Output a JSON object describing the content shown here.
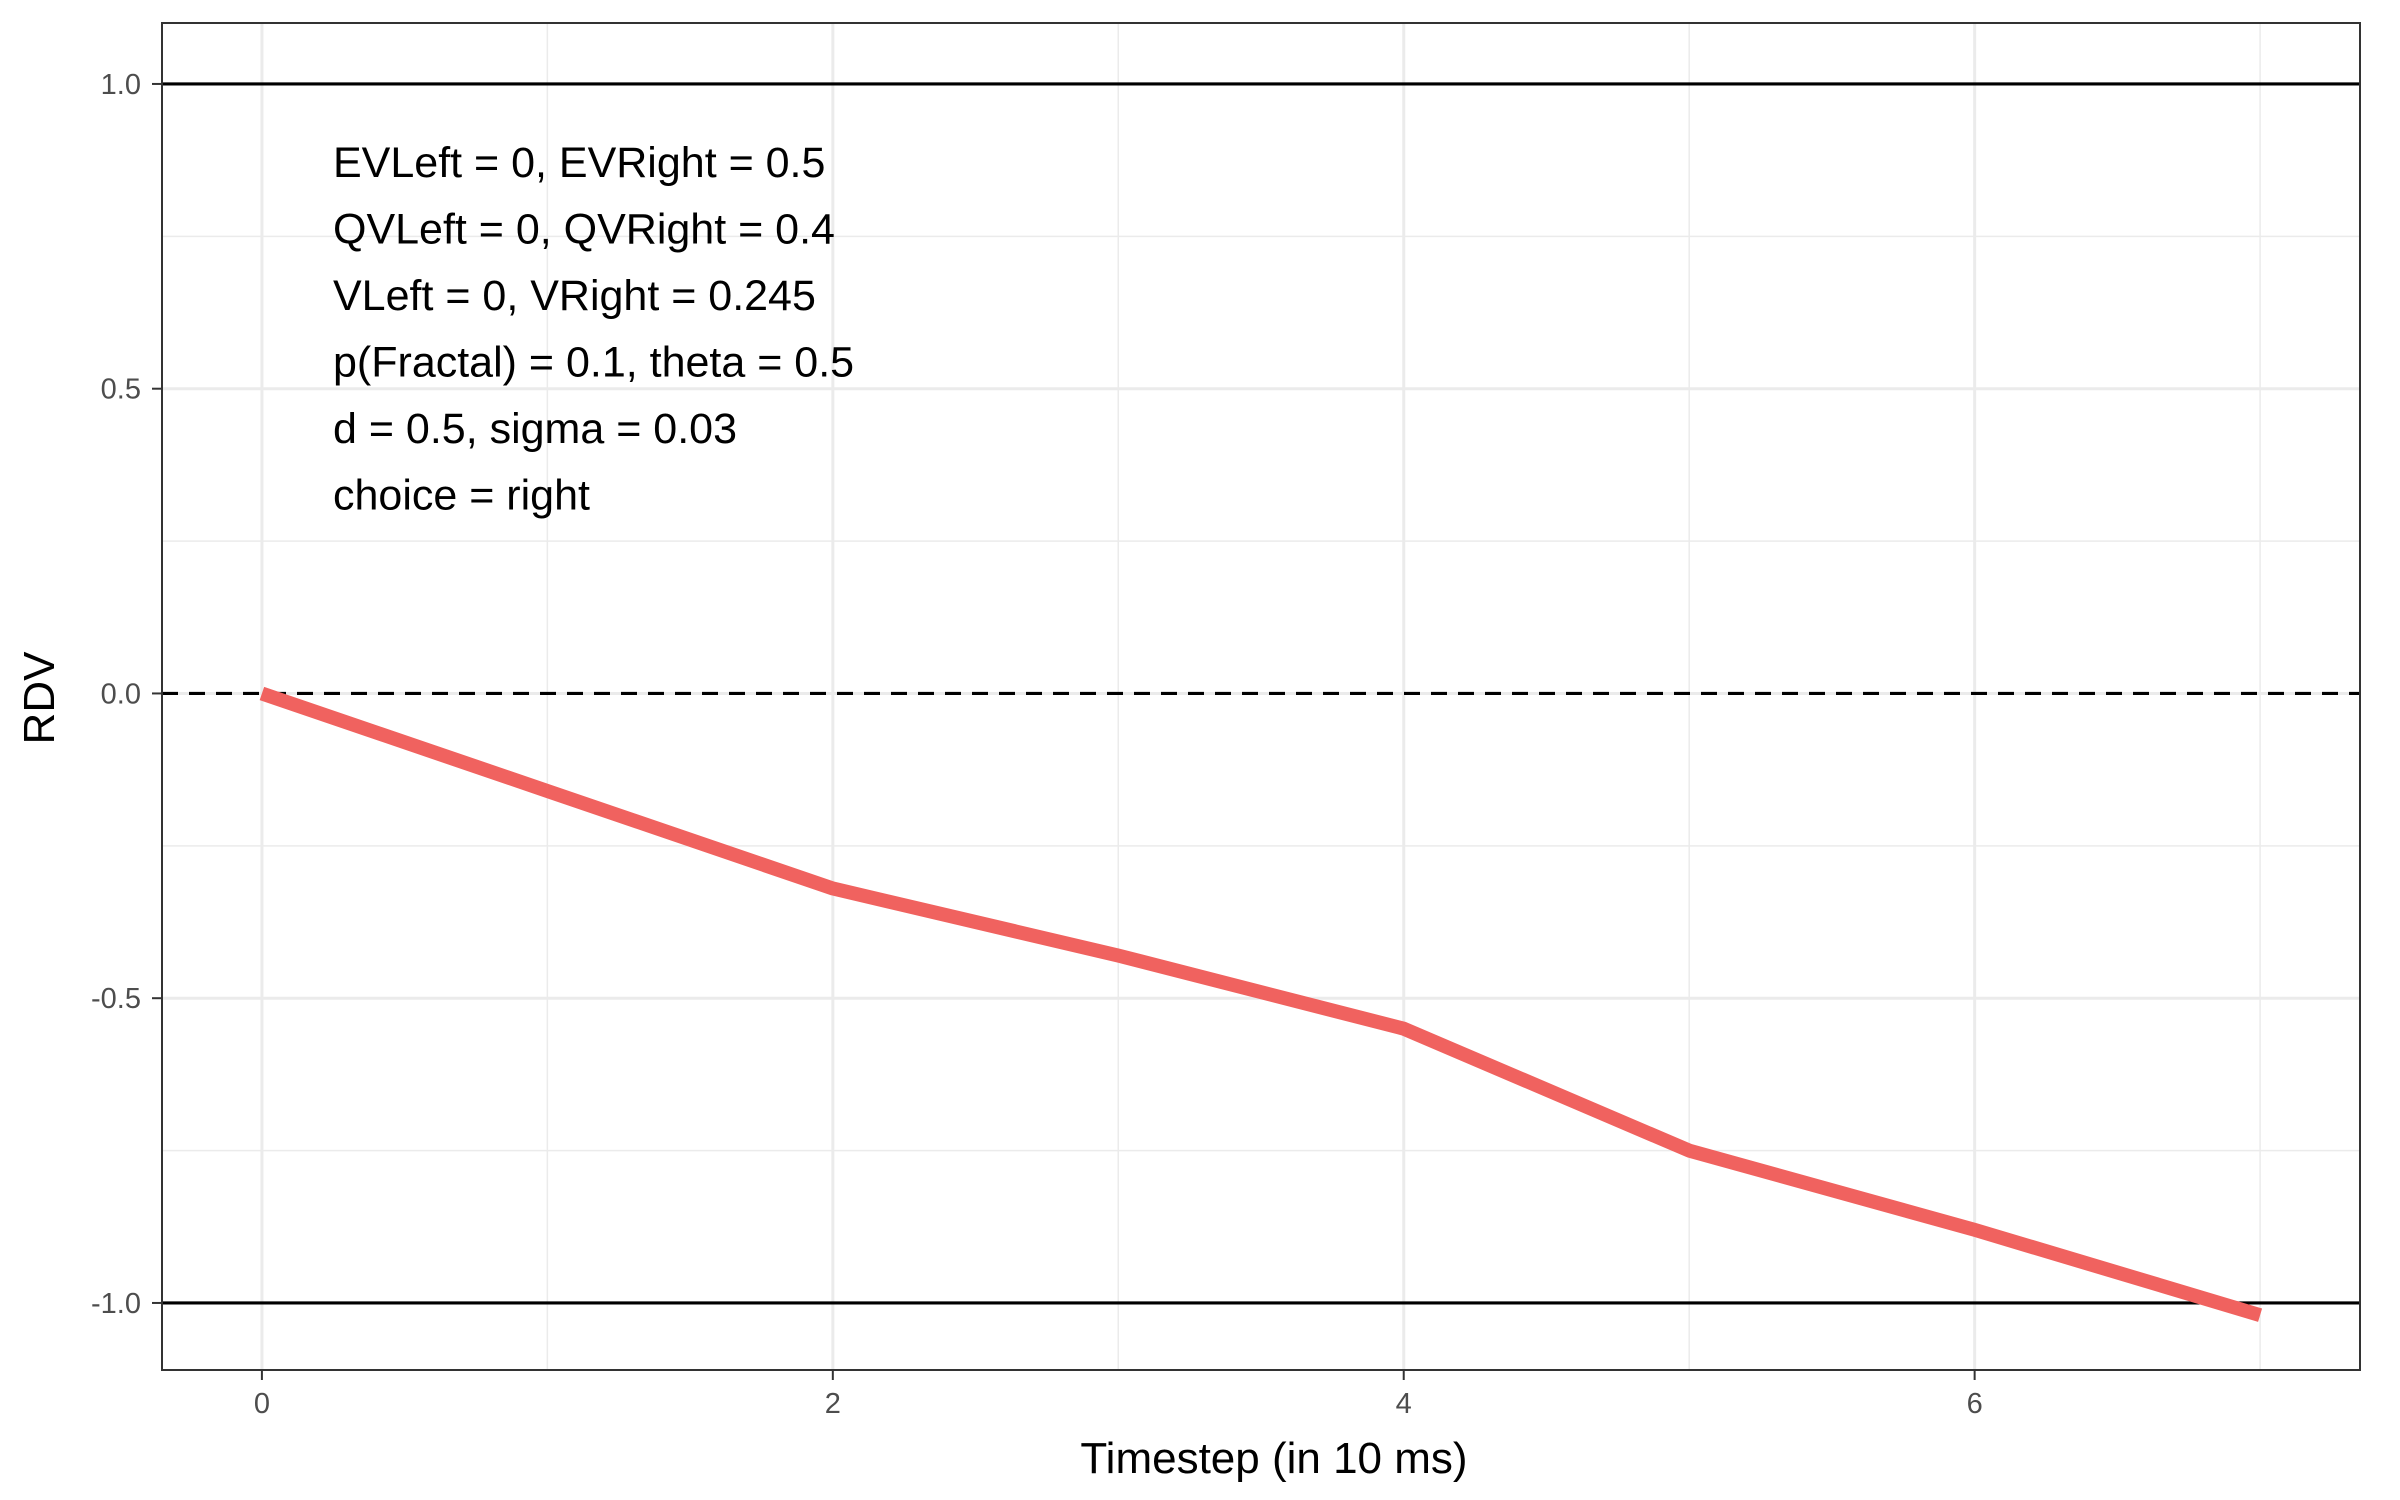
{
  "chart_data": {
    "type": "line",
    "title": "",
    "xlabel": "Timestep (in 10 ms)",
    "ylabel": "RDV",
    "xlim": [
      -0.35,
      7.35
    ],
    "ylim": [
      -1.11,
      1.1
    ],
    "x_ticks": [
      0,
      2,
      4,
      6
    ],
    "x_tick_labels": [
      "0",
      "2",
      "4",
      "6"
    ],
    "y_ticks": [
      -1.0,
      -0.5,
      0.0,
      0.5,
      1.0
    ],
    "y_tick_labels": [
      "-1.0",
      "-0.5",
      "0.0",
      "0.5",
      "1.0"
    ],
    "x_minor_ticks": [
      1,
      3,
      5,
      7
    ],
    "y_minor_ticks": [
      -0.75,
      -0.25,
      0.25,
      0.75
    ],
    "grid": true,
    "series": [
      {
        "x": [
          0,
          1,
          2,
          3,
          4,
          5,
          6,
          7
        ],
        "values": [
          0.0,
          -0.16,
          -0.32,
          -0.43,
          -0.55,
          -0.75,
          -0.88,
          -1.02
        ],
        "color": "#f0625f"
      }
    ],
    "reference_lines": [
      {
        "y": 1.0,
        "style": "solid",
        "color": "#000000"
      },
      {
        "y": -1.0,
        "style": "solid",
        "color": "#000000"
      },
      {
        "y": 0.0,
        "style": "dashed",
        "color": "#000000"
      }
    ],
    "annotations": [
      "EVLeft = 0, EVRight = 0.5",
      "QVLeft = 0, QVRight = 0.4",
      "VLeft = 0, VRight = 0.245",
      "p(Fractal) = 0.1, theta = 0.5",
      "d = 0.5, sigma = 0.03",
      "choice = right"
    ],
    "legend": "none"
  }
}
